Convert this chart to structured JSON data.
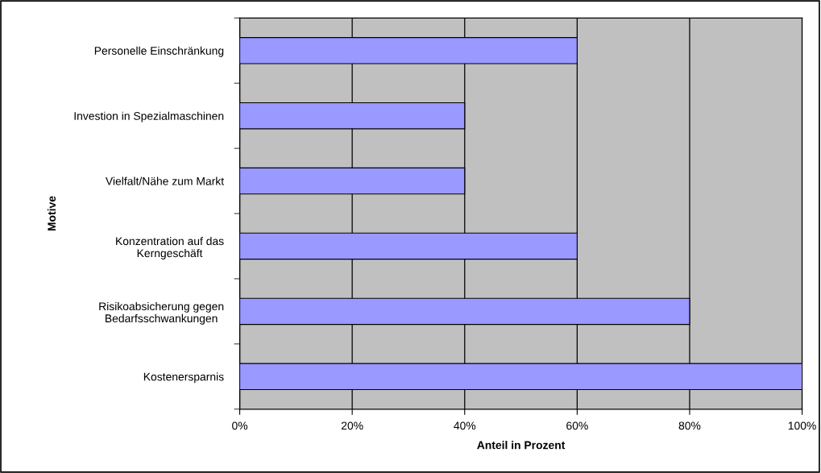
{
  "chart_data": {
    "type": "bar",
    "orientation": "horizontal",
    "xlabel": "Anteil in Prozent",
    "ylabel": "Motive",
    "categories": [
      "Personelle Einschränkung",
      "Investion in Spezialmaschinen",
      "Vielfalt/Nähe zum Markt",
      "Konzentration auf das\nKerngeschäft",
      "Risikoabsicherung gegen\nBedarfsschwankungen",
      "Kostenersparnis"
    ],
    "values": [
      60,
      40,
      40,
      60,
      80,
      100
    ],
    "color": "#9999ff",
    "xlim": [
      0,
      100
    ],
    "xticks": [
      {
        "value": 0,
        "label": "0%"
      },
      {
        "value": 20,
        "label": "20%"
      },
      {
        "value": 40,
        "label": "40%"
      },
      {
        "value": 60,
        "label": "60%"
      },
      {
        "value": 80,
        "label": "80%"
      },
      {
        "value": 100,
        "label": "100%"
      }
    ],
    "grid": "x"
  }
}
